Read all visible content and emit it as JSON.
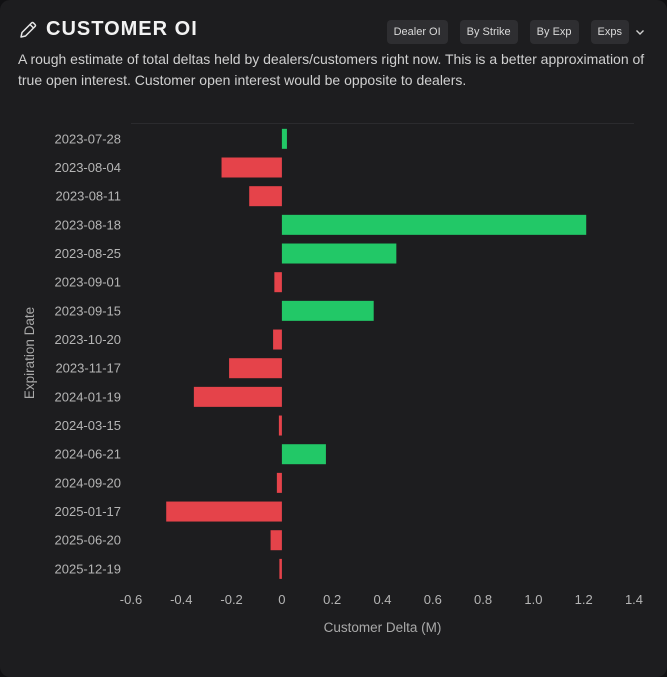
{
  "header": {
    "title": "CUSTOMER OI",
    "description": "A rough estimate of total deltas held by dealers/customers right now. This is a better approximation of true open interest. Customer open interest would be opposite to dealers."
  },
  "toolbar": {
    "dealer_oi_label": "Dealer OI",
    "by_strike_label": "By Strike",
    "by_exp_label": "By Exp",
    "exps_label": "Exps"
  },
  "colors": {
    "positive": "#22c867",
    "negative": "#e5434a",
    "background": "#1d1d1f"
  },
  "chart_data": {
    "type": "bar",
    "orientation": "horizontal",
    "xlabel": "Customer Delta (M)",
    "ylabel": "Expiration Date",
    "xlim": [
      -0.6,
      1.4
    ],
    "xticks": [
      -0.6,
      -0.4,
      -0.2,
      0,
      0.2,
      0.4,
      0.6,
      0.8,
      1.0,
      1.2,
      1.4
    ],
    "xtick_labels": [
      "-0.6",
      "-0.4",
      "-0.2",
      "0",
      "0.2",
      "0.4",
      "0.6",
      "0.8",
      "1.0",
      "1.2",
      "1.4"
    ],
    "categories": [
      "2023-07-28",
      "2023-08-04",
      "2023-08-11",
      "2023-08-18",
      "2023-08-25",
      "2023-09-01",
      "2023-09-15",
      "2023-10-20",
      "2023-11-17",
      "2024-01-19",
      "2024-03-15",
      "2024-06-21",
      "2024-09-20",
      "2025-01-17",
      "2025-06-20",
      "2025-12-19"
    ],
    "values": [
      0.02,
      -0.24,
      -0.13,
      1.21,
      0.455,
      -0.03,
      0.365,
      -0.035,
      -0.21,
      -0.35,
      -0.012,
      0.175,
      -0.02,
      -0.46,
      -0.045,
      -0.01
    ],
    "grid": false,
    "legend": "none"
  }
}
